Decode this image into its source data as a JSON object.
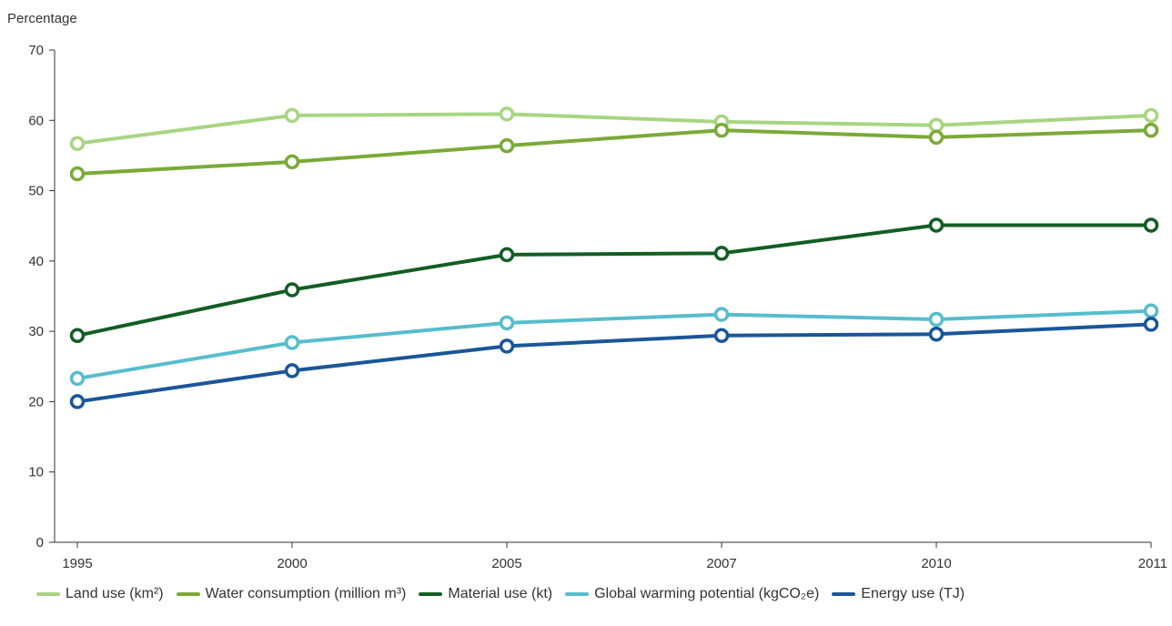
{
  "chart_data": {
    "type": "line",
    "ylabel": "Percentage",
    "xlabel": "",
    "x": [
      "1995",
      "2000",
      "2005",
      "2007",
      "2010",
      "2011"
    ],
    "ylim": [
      0,
      70
    ],
    "yticks": [
      0,
      10,
      20,
      30,
      40,
      50,
      60,
      70
    ],
    "grid": false,
    "legend_position": "bottom",
    "series": [
      {
        "name": "Land use (km²)",
        "color": "#a8d582",
        "values": [
          56.7,
          60.7,
          60.9,
          59.8,
          59.3,
          60.7
        ]
      },
      {
        "name": "Water consumption (million m³)",
        "color": "#7aaa37",
        "values": [
          52.4,
          54.1,
          56.4,
          58.6,
          57.6,
          58.6
        ]
      },
      {
        "name": "Material use (kt)",
        "color": "#135d24",
        "values": [
          29.4,
          35.9,
          40.9,
          41.1,
          45.1,
          45.1
        ]
      },
      {
        "name": "Global warming potential (kgCO₂e)",
        "color": "#57bdcc",
        "values": [
          23.3,
          28.4,
          31.2,
          32.4,
          31.7,
          32.9
        ]
      },
      {
        "name": "Energy use (TJ)",
        "color": "#1a5699",
        "values": [
          20.0,
          24.4,
          27.9,
          29.4,
          29.6,
          31.0
        ]
      }
    ]
  }
}
